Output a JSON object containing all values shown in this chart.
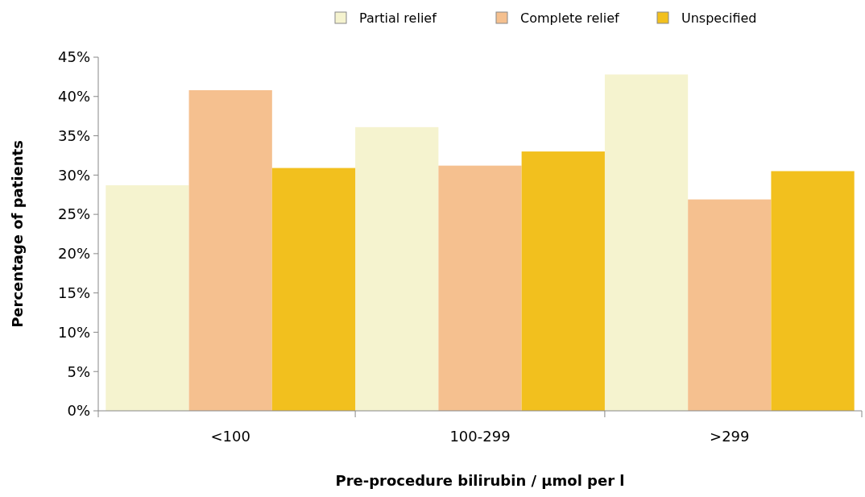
{
  "chart_data": {
    "type": "bar",
    "xlabel": "Pre-procedure bilirubin / μmol per l",
    "ylabel": "Percentage of patients",
    "categories": [
      "<100",
      "100-299",
      ">299"
    ],
    "series": [
      {
        "name": "Partial relief",
        "color": "#f5f3cf",
        "values": [
          28.7,
          36.1,
          42.8
        ]
      },
      {
        "name": "Complete relief",
        "color": "#f5c08f",
        "values": [
          40.8,
          31.2,
          26.9
        ]
      },
      {
        "name": "Unspecified",
        "color": "#f2c01e",
        "values": [
          30.9,
          33.0,
          30.5
        ]
      }
    ],
    "ylim": [
      0,
      45
    ],
    "yticks": [
      {
        "value": 0,
        "label": "0%"
      },
      {
        "value": 5,
        "label": "5%"
      },
      {
        "value": 10,
        "label": "10%"
      },
      {
        "value": 15,
        "label": "15%"
      },
      {
        "value": 20,
        "label": "20%"
      },
      {
        "value": 25,
        "label": "25%"
      },
      {
        "value": 30,
        "label": "30%"
      },
      {
        "value": 35,
        "label": "35%"
      },
      {
        "value": 40,
        "label": "40%"
      },
      {
        "value": 45,
        "label": "45%"
      }
    ],
    "grid": false,
    "legend": "top"
  }
}
